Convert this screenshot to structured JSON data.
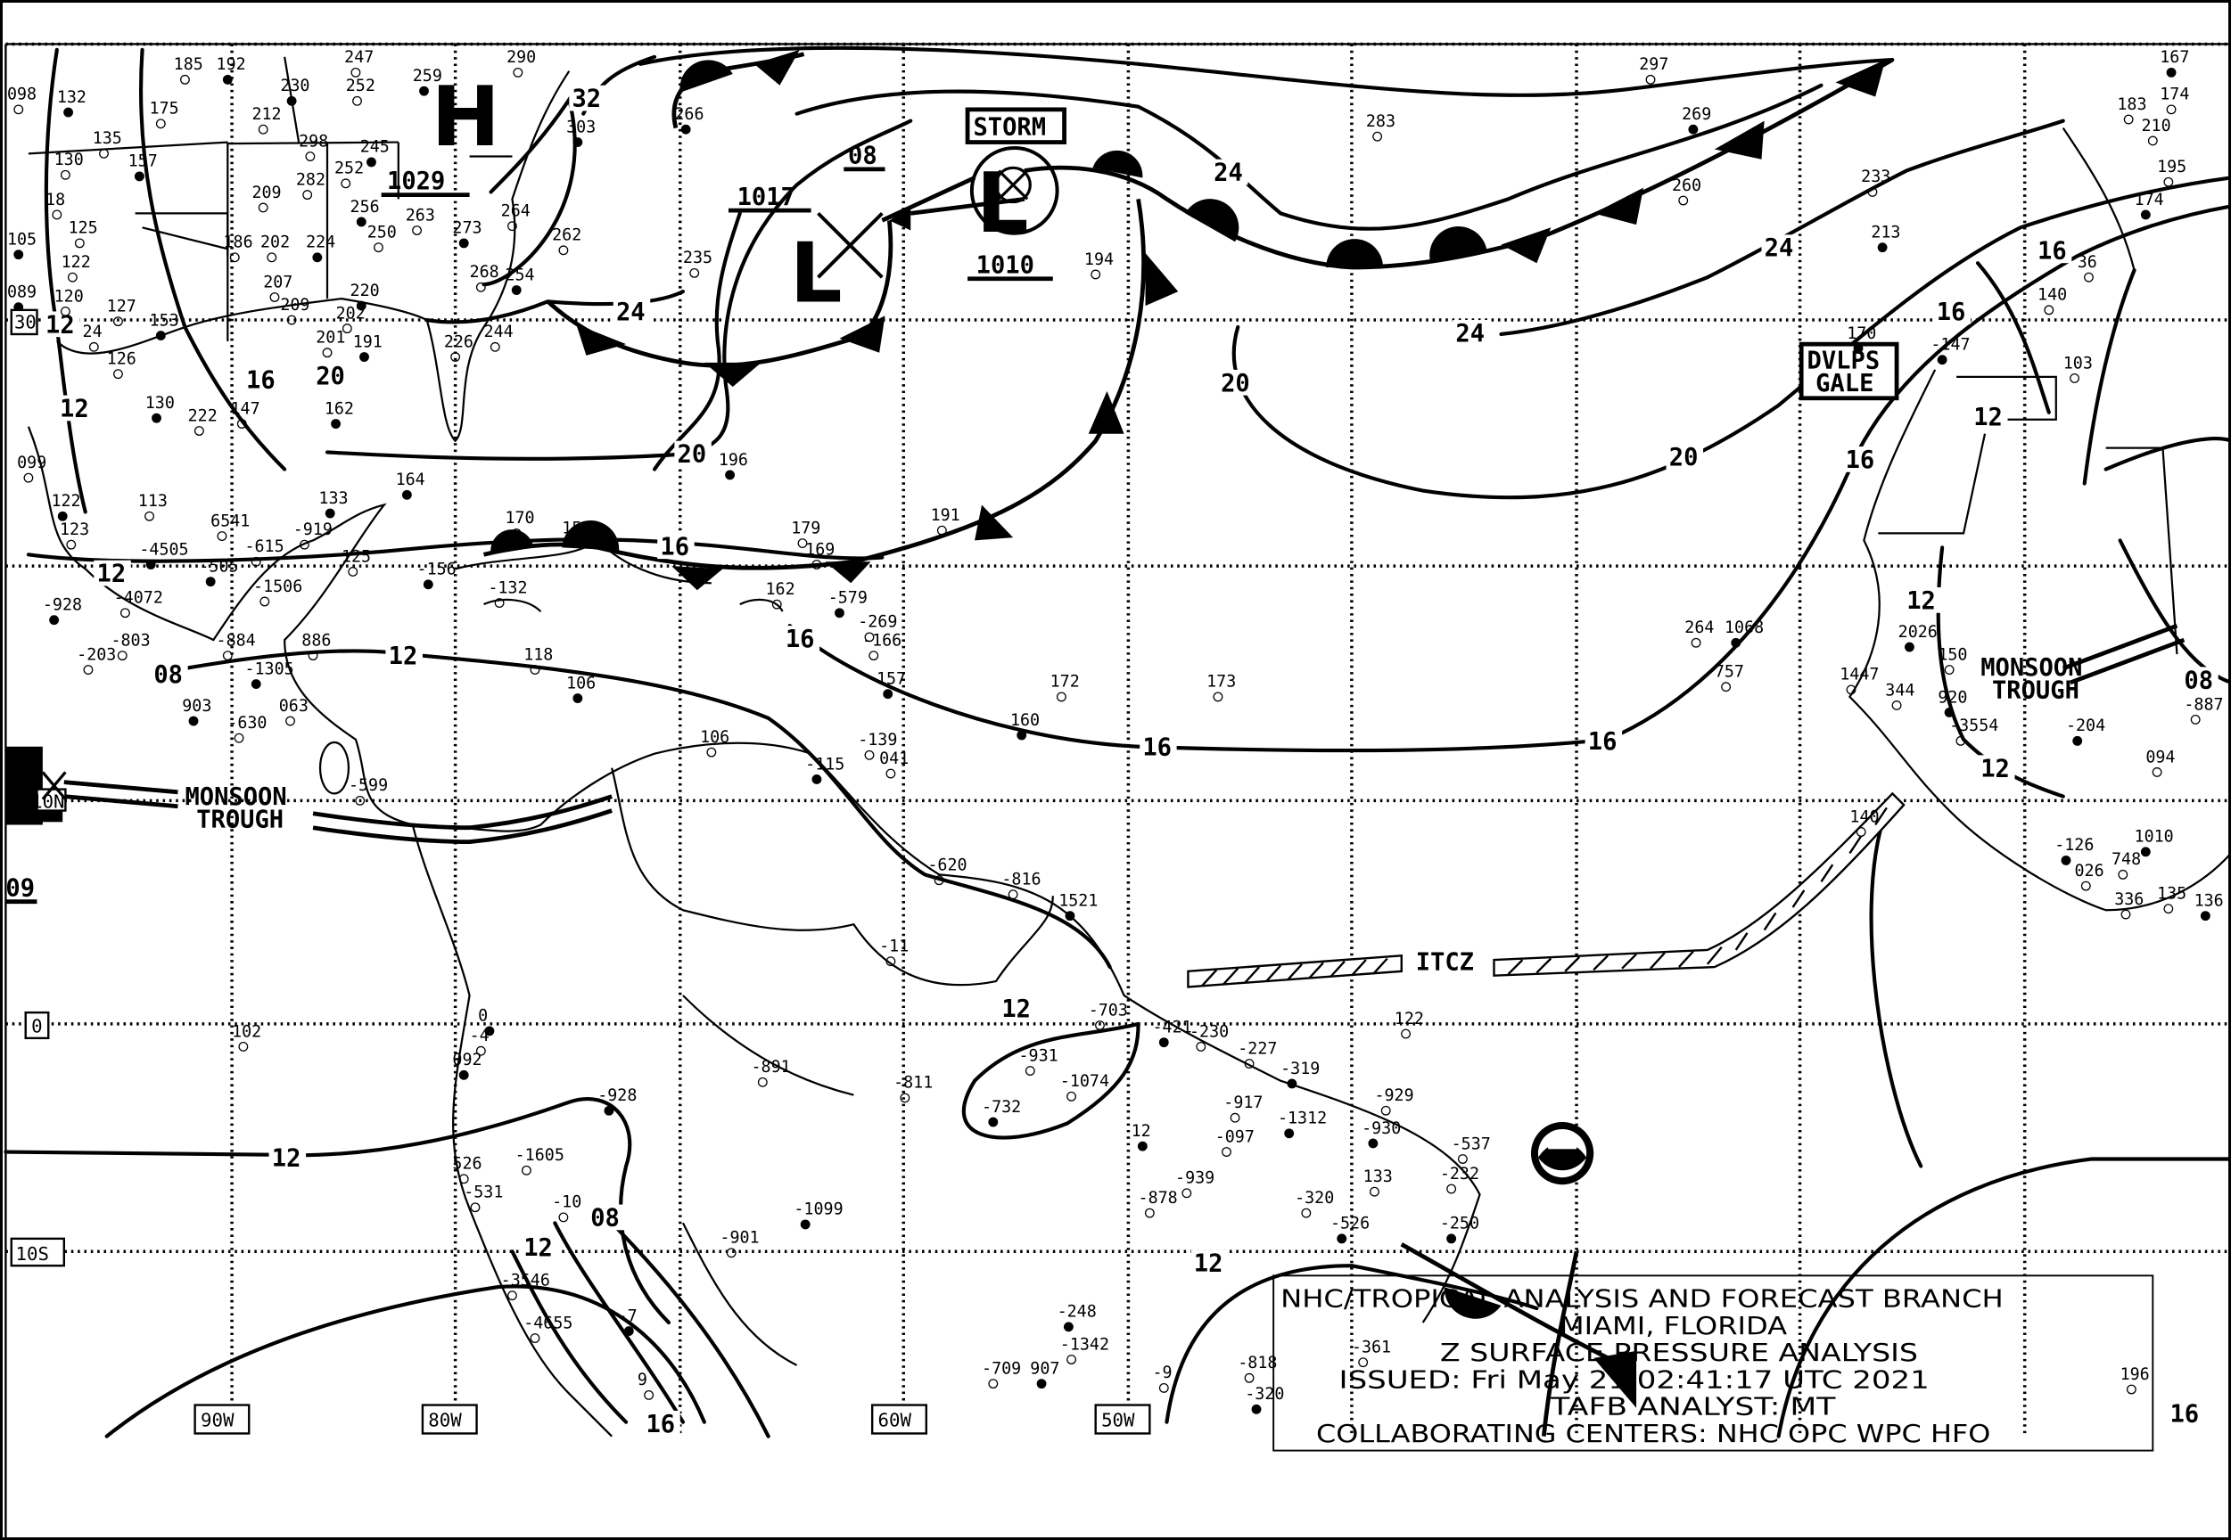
{
  "map": {
    "title_box": {
      "line1": "NHC/TROPICAL ANALYSIS AND FORECAST BRANCH",
      "line2": "MIAMI, FLORIDA",
      "line3": "Z SURFACE PRESSURE ANALYSIS",
      "line4": "ISSUED: Fri May 21 02:41:17 UTC 2021",
      "line5": "TAFB ANALYST: MT",
      "line6": "COLLABORATING CENTERS: NHC OPC WPC HFO"
    },
    "latitude_labels": [
      "30",
      "10N",
      "0",
      "10S"
    ],
    "longitude_labels": [
      "90W",
      "80W",
      "60W",
      "50W"
    ],
    "pressure_centers": [
      {
        "type": "H",
        "pressure": "1029"
      },
      {
        "type": "L",
        "pressure": "1017"
      },
      {
        "type": "L",
        "pressure": "1010"
      },
      {
        "type": "L",
        "pressure": "09"
      }
    ],
    "warning_labels": [
      "STORM",
      "DVLPS",
      "GALE"
    ],
    "feature_labels": {
      "monsoon_left_1": "MONSOON",
      "monsoon_left_2": "TROUGH",
      "monsoon_right_1": "MONSOON",
      "monsoon_right_2": "TROUGH",
      "itcz": "ITCZ"
    },
    "isobar_labels": [
      "32",
      "24",
      "24",
      "24",
      "24",
      "08",
      "20",
      "20",
      "20",
      "20",
      "16",
      "16",
      "16",
      "16",
      "16",
      "16",
      "16",
      "16",
      "16",
      "16",
      "12",
      "12",
      "12",
      "12",
      "12",
      "12",
      "12",
      "12",
      "12",
      "12",
      "12",
      "08",
      "08",
      "08"
    ],
    "stations": [
      "132",
      "175",
      "185",
      "192",
      "130",
      "135",
      "157",
      "098",
      "18",
      "105",
      "125",
      "122",
      "089",
      "120",
      "127",
      "153",
      "24",
      "126",
      "130",
      "222",
      "147",
      "162",
      "113",
      "099",
      "122",
      "123",
      "212",
      "230",
      "252",
      "247",
      "259",
      "298",
      "252",
      "245",
      "282",
      "209",
      "256",
      "263",
      "250",
      "273",
      "202",
      "186",
      "224",
      "262",
      "268",
      "254",
      "207",
      "209",
      "220",
      "202",
      "201",
      "191",
      "244",
      "226",
      "303",
      "264",
      "235",
      "266",
      "297",
      "283",
      "269",
      "260",
      "233",
      "213",
      "194",
      "191",
      "196",
      "179",
      "169",
      "164",
      "170",
      "158",
      "133",
      "125",
      "-132",
      "-156",
      "162",
      "118",
      "106",
      "172",
      "173",
      "160",
      "886",
      "106",
      "-579",
      "-269",
      "-166",
      "157",
      "-139",
      "041",
      "-115",
      "-620",
      "-816",
      "1521",
      "-11",
      "-703",
      "-421",
      "-230",
      "-227",
      "-319",
      "-929",
      "122",
      "-930",
      "-537",
      "-232",
      "-250",
      "133",
      "-320",
      "-526",
      "-939",
      "-878",
      "12",
      "-097",
      "-917",
      "-1312",
      "-1074",
      "-931",
      "-732",
      "-811",
      "-891",
      "-1099",
      "-901",
      "-1605",
      "-928",
      "-10",
      "-4",
      "092",
      "526",
      "-531",
      "0",
      "-3546",
      "-4655",
      "-7",
      "9",
      "102",
      "-248",
      "-1342",
      "-709",
      "907",
      "-9",
      "-818",
      "-320",
      "-361",
      "196",
      "1068",
      "264",
      "757",
      "2026",
      "1447",
      "344",
      "920",
      "150",
      "-3554",
      "-204",
      "094",
      "140",
      "-126",
      "026",
      "748",
      "1010",
      "336",
      "135",
      "136",
      "-887",
      "103",
      "170",
      "183",
      "174",
      "167",
      "210",
      "195",
      "174",
      "36",
      "140",
      "-147",
      "290",
      "-884",
      "-505",
      "-615",
      "-919",
      "903",
      "-630",
      "063",
      "-1305",
      "-1506",
      "-803",
      "-4505",
      "6541",
      "-4072",
      "-928",
      "-203",
      "-599"
    ],
    "colors": {
      "ink": "#000000",
      "background": "#ffffff"
    }
  }
}
